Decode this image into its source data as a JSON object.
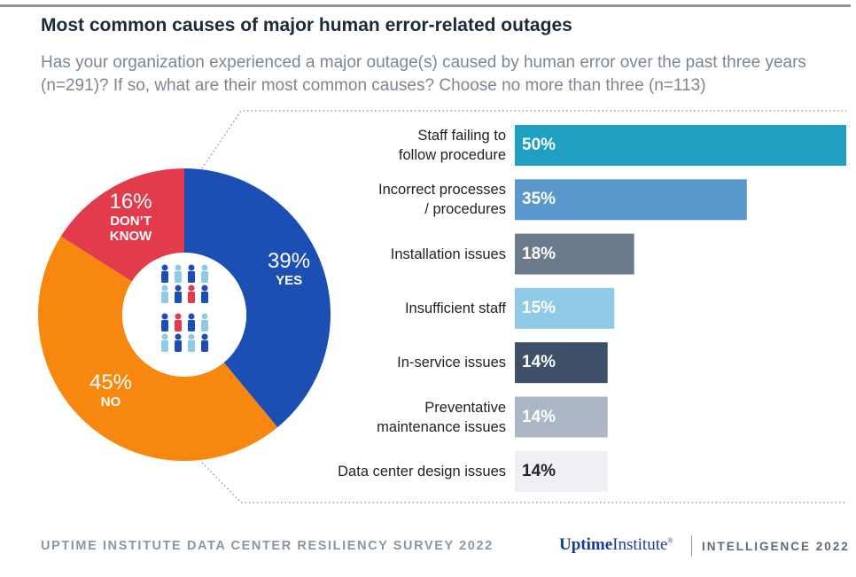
{
  "title": "Most common causes of major human error-related outages",
  "subtitle": "Has your organization experienced a major outage(s) caused by human error over the past three years (n=291)? If so, what are their most common causes? Choose no more than three (n=113)",
  "chart_data": [
    {
      "type": "pie",
      "categories": [
        "YES",
        "NO",
        "DON’T\nKNOW"
      ],
      "values": [
        39,
        45,
        16
      ],
      "value_labels": [
        "39%",
        "45%",
        "16%"
      ],
      "colors": [
        "#1c4fb3",
        "#f7870f",
        "#e23b4b"
      ]
    },
    {
      "type": "bar",
      "categories": [
        "Staff failing to\nfollow procedure",
        "Incorrect processes\n/ procedures",
        "Installation issues",
        "Insufficient staff",
        "In-service issues",
        "Preventative\nmaintenance issues",
        "Data center design issues"
      ],
      "values": [
        50,
        35,
        18,
        15,
        14,
        14,
        14
      ],
      "value_labels": [
        "50%",
        "35%",
        "18%",
        "15%",
        "14%",
        "14%",
        "14%"
      ],
      "colors": [
        "#1fa0c0",
        "#5a97cc",
        "#6c7b8b",
        "#8fcbe6",
        "#3f5069",
        "#adb6c4",
        "#eef0f5"
      ],
      "xlim": [
        0,
        50
      ]
    }
  ],
  "footer": {
    "source": "UPTIME INSTITUTE DATA CENTER RESILIENCY SURVEY 2022",
    "brand_bold": "Uptime",
    "brand": "Institute",
    "brand_mark": "®",
    "product": "INTELLIGENCE 2022"
  }
}
